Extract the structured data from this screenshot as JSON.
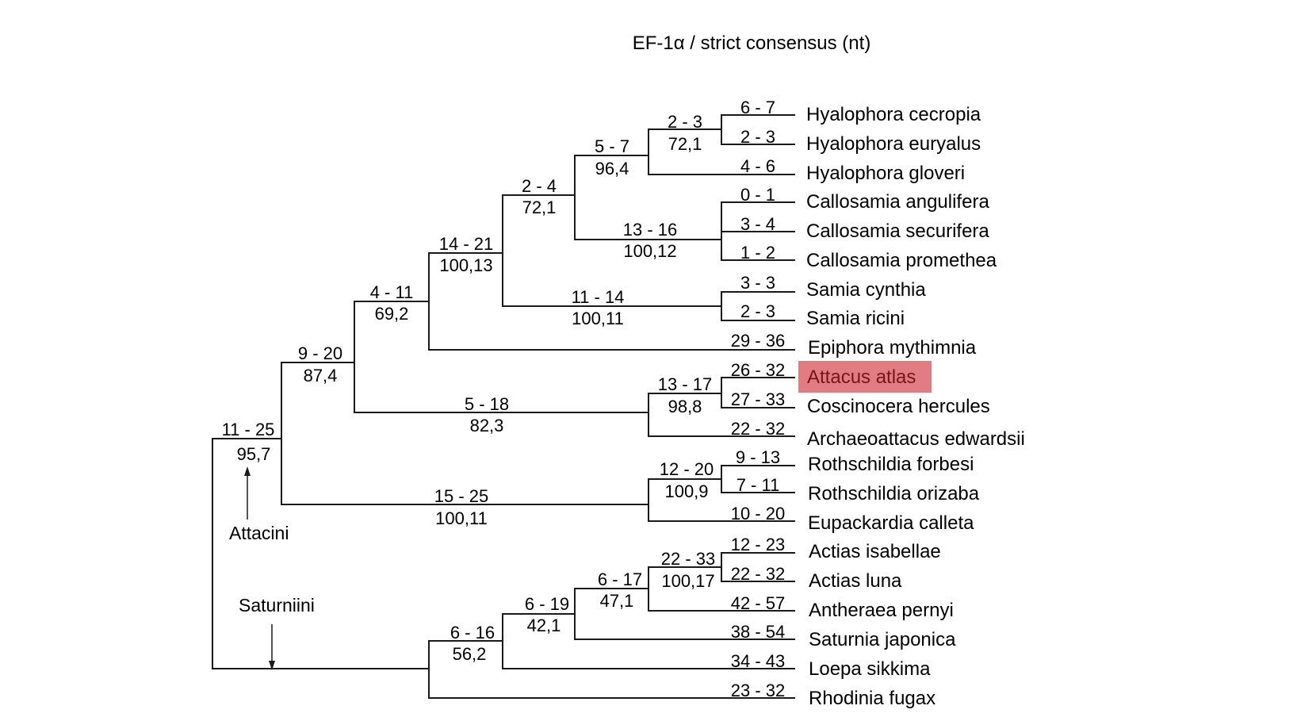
{
  "title": "EF-1α / strict consensus (nt)",
  "highlight_color": "#e07c82",
  "taxa": [
    "Hyalophora cecropia",
    "Hyalophora euryalus",
    "Hyalophora gloveri",
    "Callosamia angulifera",
    "Callosamia securifera",
    "Callosamia promethea",
    "Samia cynthia",
    "Samia ricini",
    "Epiphora mythimnia",
    "Attacus atlas",
    "Coscinocera hercules",
    "Archaeoattacus edwardsii",
    "Rothschildia forbesi",
    "Rothschildia orizaba",
    "Eupackardia calleta",
    "Actias isabellae",
    "Actias luna",
    "Antheraea pernyi",
    "Saturnia japonica",
    "Loepa sikkima",
    "Rhodinia fugax"
  ],
  "highlighted_taxon": "Attacus atlas",
  "terminal_labels": [
    "6 - 7",
    "2 - 3",
    "4 - 6",
    "0 - 1",
    "3 - 4",
    "1 - 2",
    "3 - 3",
    "2 - 3",
    "29 - 36",
    "26 - 32",
    "27 - 33",
    "22 - 32",
    "9 - 13",
    "7 - 11",
    "10 - 20",
    "12 - 23",
    "22 - 32",
    "42 - 57",
    "38 - 54",
    "34 - 43",
    "23 - 32"
  ],
  "internal_labels": [
    {
      "top": "2 - 3",
      "bottom": "72,1"
    },
    {
      "top": "5 - 7",
      "bottom": "96,4"
    },
    {
      "top": "13 - 16",
      "bottom": "100,12"
    },
    {
      "top": "2 - 4",
      "bottom": "72,1"
    },
    {
      "top": "11 - 14",
      "bottom": "100,11"
    },
    {
      "top": "14 - 21",
      "bottom": "100,13"
    },
    {
      "top": "4 - 11",
      "bottom": "69,2"
    },
    {
      "top": "13 - 17",
      "bottom": "98,8"
    },
    {
      "top": "5 - 18",
      "bottom": "82,3"
    },
    {
      "top": "9 - 20",
      "bottom": "87,4"
    },
    {
      "top": "12 - 20",
      "bottom": "100,9"
    },
    {
      "top": "15 - 25",
      "bottom": "100,11"
    },
    {
      "top": "11 - 25",
      "bottom": "95,7"
    },
    {
      "top": "22 - 33",
      "bottom": "100,17"
    },
    {
      "top": "6 - 17",
      "bottom": "47,1"
    },
    {
      "top": "6 - 19",
      "bottom": "42,1"
    },
    {
      "top": "6 - 16",
      "bottom": "56,2"
    }
  ],
  "tribes": {
    "attacini": "Attacini",
    "saturniini": "Saturniini"
  }
}
